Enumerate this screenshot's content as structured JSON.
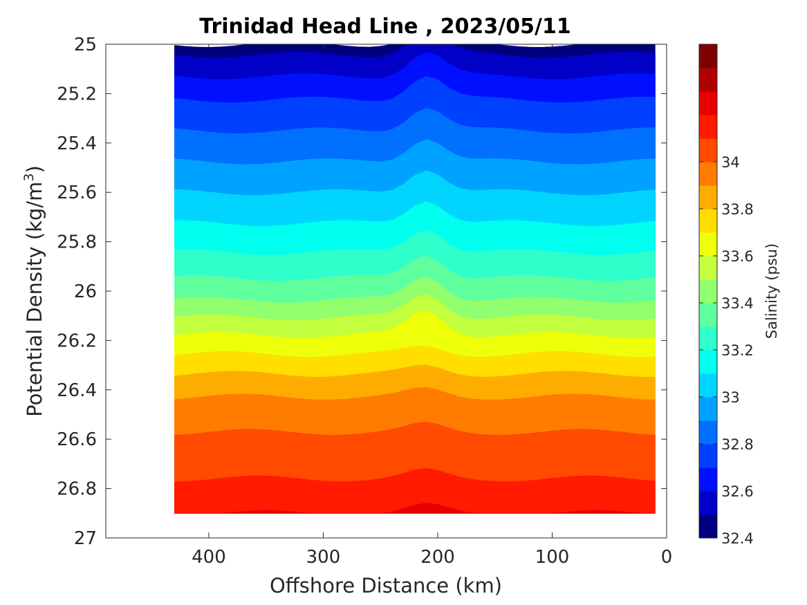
{
  "chart_data": {
    "type": "contourf",
    "title": "Trinidad Head Line , 2023/05/11",
    "xlabel": "Offshore Distance (km)",
    "ylabel_main": "Potential Density (kg/m",
    "ylabel_sup": "3",
    "ylabel_close": ")",
    "colorbar_label": "Salinity (psu)",
    "xlim": [
      490,
      0
    ],
    "xlim_note": "x axis reversed: 0 km at right",
    "ylim": [
      25,
      27
    ],
    "y_reversed": true,
    "x_ticks": [
      400,
      300,
      200,
      100,
      0
    ],
    "y_ticks": [
      "25",
      "25.2",
      "25.4",
      "25.6",
      "25.8",
      "26",
      "26.2",
      "26.4",
      "26.6",
      "26.8",
      "27"
    ],
    "y_tick_values": [
      25,
      25.2,
      25.4,
      25.6,
      25.8,
      26,
      26.2,
      26.4,
      26.6,
      26.8,
      27
    ],
    "color_range": [
      32.4,
      34.5
    ],
    "colorbar_ticks": [
      "32.4",
      "32.6",
      "32.8",
      "33",
      "33.2",
      "33.4",
      "33.6",
      "33.8",
      "34"
    ],
    "colorbar_tick_values": [
      32.4,
      32.6,
      32.8,
      33.0,
      33.2,
      33.4,
      33.6,
      33.8,
      34.0
    ],
    "contour_levels": [
      32.4,
      32.5,
      32.6,
      32.7,
      32.8,
      32.9,
      33.0,
      33.1,
      33.2,
      33.3,
      33.4,
      33.5,
      33.6,
      33.7,
      33.8,
      33.9,
      34.0,
      34.1,
      34.2,
      34.3,
      34.4,
      34.5
    ],
    "colormap": "jet",
    "level_colors": [
      "#00007f",
      "#0000c6",
      "#0010ff",
      "#0040ff",
      "#0070ff",
      "#00a2ff",
      "#00d4ff",
      "#00ffef",
      "#2effcb",
      "#60ff9e",
      "#91ff6e",
      "#c2ff3e",
      "#eeff0a",
      "#ffde00",
      "#ffac00",
      "#ff7c00",
      "#ff4a00",
      "#ff1a00",
      "#e80000",
      "#b00000",
      "#7f0000"
    ],
    "data_coverage_x": [
      430,
      10
    ],
    "data_coverage_ylim": [
      25,
      26.9
    ],
    "salinity_surfaces": {
      "sigma": [
        25.0,
        25.2,
        25.4,
        25.6,
        25.8,
        26.0,
        26.2,
        26.4,
        26.6,
        26.8,
        26.9
      ],
      "salinity": [
        32.45,
        32.68,
        32.84,
        33.0,
        33.16,
        33.35,
        33.63,
        33.88,
        34.02,
        34.12,
        34.2
      ]
    }
  }
}
